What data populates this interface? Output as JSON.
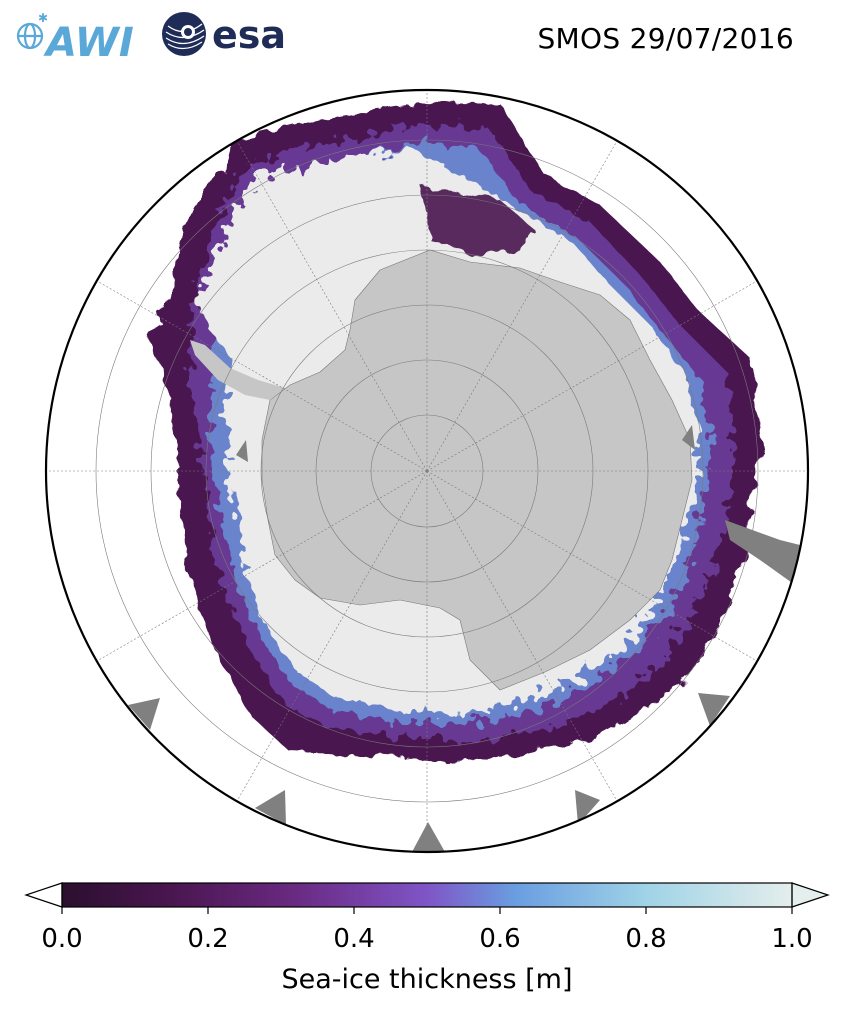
{
  "header": {
    "logo_left_text": "AWI",
    "logo_right_text": "esa",
    "product": "SMOS",
    "date": "29/07/2016",
    "title": "SMOS 29/07/2016"
  },
  "map": {
    "projection": "south-polar-stereographic",
    "region": "Antarctica / Southern Ocean",
    "colors": {
      "land": "#c6c6c6",
      "coast_gray": "#808080",
      "thick_ice": "#ebebeb",
      "graticule": "#7a7a7a",
      "frame": "#000000"
    }
  },
  "colorbar": {
    "label": "Sea-ice thickness [m]",
    "ticks": [
      "0.0",
      "0.2",
      "0.4",
      "0.6",
      "0.8",
      "1.0"
    ],
    "min": 0.0,
    "max": 1.0,
    "extend": "both",
    "colormap": [
      "#2b0f2e",
      "#4a1650",
      "#6a2a82",
      "#7f55c7",
      "#6a9de0",
      "#9fd3e6",
      "#e4eeec"
    ]
  }
}
